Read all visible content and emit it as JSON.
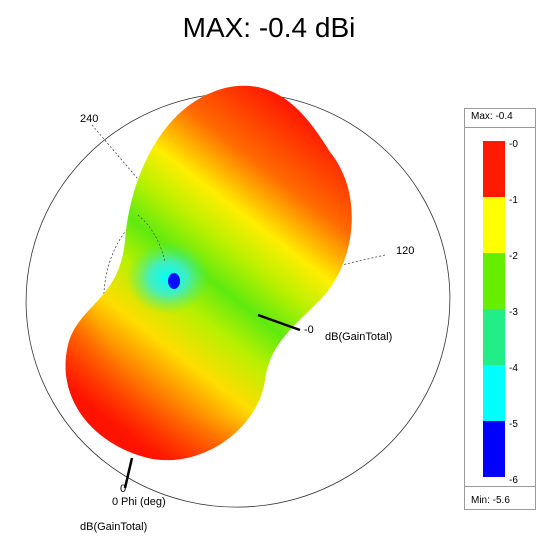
{
  "title": "MAX:  -0.4 dBi",
  "plot": {
    "angle_labels": [
      "240",
      "120",
      "0"
    ],
    "axis_phi": "Phi (deg)",
    "axis_zero": "0",
    "quantity_label_right": "dB(GainTotal)",
    "quantity_label_bottom": "dB(GainTotal)",
    "radial_zero": "-0"
  },
  "legend": {
    "max_label": "Max: -0.4",
    "min_label": "Min: -5.6",
    "ticks": [
      "-0",
      "-1",
      "-2",
      "-3",
      "-4",
      "-5",
      "-6"
    ],
    "colors": [
      "#ff1a00",
      "#ffff00",
      "#66ee00",
      "#22ee88",
      "#00ffff",
      "#0000ff"
    ]
  }
}
